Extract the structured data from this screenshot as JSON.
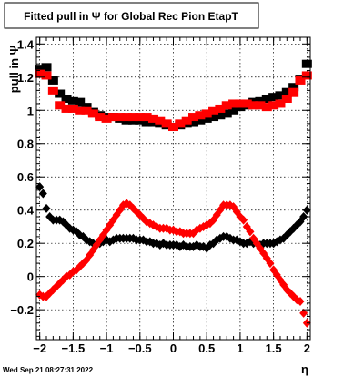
{
  "chart_data": {
    "type": "scatter",
    "title": "Fitted pull in  Ψ  for Global Rec Pion EtapT",
    "xlabel": "η",
    "ylabel": "pull in  Ψ",
    "xlim": [
      -2.05,
      2.05
    ],
    "ylim": [
      -0.38,
      1.44
    ],
    "x_ticks": [
      -2,
      -1.5,
      -1,
      -0.5,
      0,
      0.5,
      1,
      1.5,
      2
    ],
    "x_tick_labels": [
      "−2",
      "−1.5",
      "−1",
      "−0.5",
      "0",
      "0.5",
      "1",
      "1.5",
      "2"
    ],
    "y_ticks": [
      -0.2,
      0,
      0.2,
      0.4,
      0.6,
      0.8,
      1,
      1.2,
      1.4
    ],
    "y_tick_labels": [
      "−0.2",
      "0",
      "0.2",
      "0.4",
      "0.6",
      "0.8",
      "1",
      "1.2",
      "1.4"
    ],
    "grid": true,
    "series": [
      {
        "marker": "square",
        "color": "#000000",
        "points": [
          [
            -2.0,
            1.25
          ],
          [
            -1.9,
            1.26
          ],
          [
            -1.8,
            1.18
          ],
          [
            -1.7,
            1.1
          ],
          [
            -1.6,
            1.07
          ],
          [
            -1.5,
            1.06
          ],
          [
            -1.4,
            1.05
          ],
          [
            -1.3,
            1.02
          ],
          [
            -1.2,
            0.99
          ],
          [
            -1.1,
            0.97
          ],
          [
            -1.0,
            0.96
          ],
          [
            -0.9,
            0.96
          ],
          [
            -0.8,
            0.95
          ],
          [
            -0.7,
            0.94
          ],
          [
            -0.6,
            0.94
          ],
          [
            -0.5,
            0.94
          ],
          [
            -0.4,
            0.93
          ],
          [
            -0.3,
            0.93
          ],
          [
            -0.2,
            0.92
          ],
          [
            -0.1,
            0.91
          ],
          [
            0.0,
            0.9
          ],
          [
            0.1,
            0.91
          ],
          [
            0.2,
            0.92
          ],
          [
            0.3,
            0.93
          ],
          [
            0.4,
            0.94
          ],
          [
            0.5,
            0.95
          ],
          [
            0.6,
            0.96
          ],
          [
            0.7,
            0.97
          ],
          [
            0.8,
            0.98
          ],
          [
            0.9,
            1.0
          ],
          [
            1.0,
            1.02
          ],
          [
            1.1,
            1.03
          ],
          [
            1.2,
            1.05
          ],
          [
            1.3,
            1.06
          ],
          [
            1.4,
            1.07
          ],
          [
            1.5,
            1.08
          ],
          [
            1.6,
            1.09
          ],
          [
            1.7,
            1.11
          ],
          [
            1.8,
            1.14
          ],
          [
            1.9,
            1.19
          ],
          [
            2.0,
            1.28
          ]
        ]
      },
      {
        "marker": "square",
        "color": "#ff0000",
        "points": [
          [
            -2.0,
            1.22
          ],
          [
            -1.9,
            1.21
          ],
          [
            -1.8,
            1.12
          ],
          [
            -1.7,
            1.03
          ],
          [
            -1.6,
            1.01
          ],
          [
            -1.5,
            1.01
          ],
          [
            -1.4,
            1.0
          ],
          [
            -1.3,
            1.0
          ],
          [
            -1.2,
            0.98
          ],
          [
            -1.1,
            0.96
          ],
          [
            -1.0,
            0.95
          ],
          [
            -0.9,
            0.96
          ],
          [
            -0.8,
            0.96
          ],
          [
            -0.7,
            0.96
          ],
          [
            -0.6,
            0.96
          ],
          [
            -0.5,
            0.96
          ],
          [
            -0.4,
            0.96
          ],
          [
            -0.3,
            0.95
          ],
          [
            -0.2,
            0.94
          ],
          [
            -0.1,
            0.92
          ],
          [
            0.0,
            0.9
          ],
          [
            0.1,
            0.92
          ],
          [
            0.2,
            0.94
          ],
          [
            0.3,
            0.96
          ],
          [
            0.4,
            0.97
          ],
          [
            0.5,
            0.98
          ],
          [
            0.6,
            1.0
          ],
          [
            0.7,
            1.01
          ],
          [
            0.8,
            1.03
          ],
          [
            0.9,
            1.04
          ],
          [
            1.0,
            1.04
          ],
          [
            1.1,
            1.04
          ],
          [
            1.2,
            1.03
          ],
          [
            1.3,
            1.03
          ],
          [
            1.4,
            1.02
          ],
          [
            1.5,
            1.03
          ],
          [
            1.6,
            1.04
          ],
          [
            1.7,
            1.07
          ],
          [
            1.8,
            1.11
          ],
          [
            1.9,
            1.18
          ],
          [
            2.0,
            1.21
          ]
        ]
      },
      {
        "marker": "diamond",
        "color": "#000000",
        "points": [
          [
            -2.0,
            0.54
          ],
          [
            -1.95,
            0.5
          ],
          [
            -1.9,
            0.41
          ],
          [
            -1.85,
            0.36
          ],
          [
            -1.8,
            0.34
          ],
          [
            -1.75,
            0.34
          ],
          [
            -1.7,
            0.34
          ],
          [
            -1.65,
            0.33
          ],
          [
            -1.6,
            0.31
          ],
          [
            -1.55,
            0.29
          ],
          [
            -1.5,
            0.28
          ],
          [
            -1.45,
            0.27
          ],
          [
            -1.4,
            0.25
          ],
          [
            -1.35,
            0.24
          ],
          [
            -1.3,
            0.22
          ],
          [
            -1.25,
            0.21
          ],
          [
            -1.2,
            0.2
          ],
          [
            -1.15,
            0.19
          ],
          [
            -1.1,
            0.2
          ],
          [
            -1.05,
            0.21
          ],
          [
            -1.0,
            0.22
          ],
          [
            -0.95,
            0.21
          ],
          [
            -0.9,
            0.22
          ],
          [
            -0.85,
            0.23
          ],
          [
            -0.8,
            0.23
          ],
          [
            -0.75,
            0.23
          ],
          [
            -0.7,
            0.23
          ],
          [
            -0.65,
            0.23
          ],
          [
            -0.6,
            0.23
          ],
          [
            -0.55,
            0.22
          ],
          [
            -0.5,
            0.22
          ],
          [
            -0.45,
            0.22
          ],
          [
            -0.4,
            0.21
          ],
          [
            -0.35,
            0.21
          ],
          [
            -0.3,
            0.2
          ],
          [
            -0.25,
            0.2
          ],
          [
            -0.2,
            0.19
          ],
          [
            -0.15,
            0.2
          ],
          [
            -0.1,
            0.19
          ],
          [
            -0.05,
            0.19
          ],
          [
            0.0,
            0.19
          ],
          [
            0.05,
            0.19
          ],
          [
            0.1,
            0.18
          ],
          [
            0.15,
            0.19
          ],
          [
            0.2,
            0.18
          ],
          [
            0.25,
            0.18
          ],
          [
            0.3,
            0.18
          ],
          [
            0.35,
            0.19
          ],
          [
            0.4,
            0.18
          ],
          [
            0.45,
            0.18
          ],
          [
            0.5,
            0.17
          ],
          [
            0.55,
            0.19
          ],
          [
            0.6,
            0.2
          ],
          [
            0.65,
            0.22
          ],
          [
            0.7,
            0.23
          ],
          [
            0.75,
            0.24
          ],
          [
            0.8,
            0.24
          ],
          [
            0.85,
            0.23
          ],
          [
            0.9,
            0.22
          ],
          [
            0.95,
            0.22
          ],
          [
            1.0,
            0.21
          ],
          [
            1.05,
            0.2
          ],
          [
            1.1,
            0.2
          ],
          [
            1.15,
            0.21
          ],
          [
            1.2,
            0.2
          ],
          [
            1.25,
            0.2
          ],
          [
            1.3,
            0.19
          ],
          [
            1.35,
            0.2
          ],
          [
            1.4,
            0.2
          ],
          [
            1.45,
            0.2
          ],
          [
            1.5,
            0.2
          ],
          [
            1.55,
            0.21
          ],
          [
            1.6,
            0.22
          ],
          [
            1.65,
            0.23
          ],
          [
            1.7,
            0.25
          ],
          [
            1.75,
            0.27
          ],
          [
            1.8,
            0.29
          ],
          [
            1.85,
            0.31
          ],
          [
            1.9,
            0.33
          ],
          [
            1.95,
            0.36
          ],
          [
            2.0,
            0.4
          ]
        ]
      },
      {
        "marker": "diamond",
        "color": "#ff0000",
        "points": [
          [
            -2.0,
            -0.11
          ],
          [
            -1.95,
            -0.12
          ],
          [
            -1.9,
            -0.12
          ],
          [
            -1.85,
            -0.1
          ],
          [
            -1.8,
            -0.08
          ],
          [
            -1.75,
            -0.06
          ],
          [
            -1.7,
            -0.04
          ],
          [
            -1.65,
            -0.02
          ],
          [
            -1.6,
            0.0
          ],
          [
            -1.55,
            0.01
          ],
          [
            -1.5,
            0.03
          ],
          [
            -1.45,
            0.04
          ],
          [
            -1.4,
            0.06
          ],
          [
            -1.35,
            0.08
          ],
          [
            -1.3,
            0.1
          ],
          [
            -1.25,
            0.13
          ],
          [
            -1.2,
            0.16
          ],
          [
            -1.15,
            0.19
          ],
          [
            -1.1,
            0.22
          ],
          [
            -1.05,
            0.25
          ],
          [
            -1.0,
            0.28
          ],
          [
            -0.95,
            0.31
          ],
          [
            -0.9,
            0.34
          ],
          [
            -0.85,
            0.37
          ],
          [
            -0.8,
            0.4
          ],
          [
            -0.75,
            0.43
          ],
          [
            -0.7,
            0.44
          ],
          [
            -0.65,
            0.43
          ],
          [
            -0.6,
            0.41
          ],
          [
            -0.55,
            0.39
          ],
          [
            -0.5,
            0.37
          ],
          [
            -0.45,
            0.35
          ],
          [
            -0.4,
            0.33
          ],
          [
            -0.35,
            0.32
          ],
          [
            -0.3,
            0.31
          ],
          [
            -0.25,
            0.3
          ],
          [
            -0.2,
            0.29
          ],
          [
            -0.15,
            0.29
          ],
          [
            -0.1,
            0.29
          ],
          [
            -0.05,
            0.28
          ],
          [
            0.0,
            0.28
          ],
          [
            0.05,
            0.27
          ],
          [
            0.1,
            0.27
          ],
          [
            0.15,
            0.26
          ],
          [
            0.2,
            0.26
          ],
          [
            0.25,
            0.26
          ],
          [
            0.3,
            0.26
          ],
          [
            0.35,
            0.28
          ],
          [
            0.4,
            0.29
          ],
          [
            0.45,
            0.3
          ],
          [
            0.5,
            0.31
          ],
          [
            0.55,
            0.32
          ],
          [
            0.6,
            0.34
          ],
          [
            0.65,
            0.37
          ],
          [
            0.7,
            0.4
          ],
          [
            0.75,
            0.43
          ],
          [
            0.8,
            0.43
          ],
          [
            0.85,
            0.43
          ],
          [
            0.9,
            0.42
          ],
          [
            0.95,
            0.39
          ],
          [
            1.0,
            0.36
          ],
          [
            1.05,
            0.34
          ],
          [
            1.1,
            0.3
          ],
          [
            1.15,
            0.27
          ],
          [
            1.2,
            0.23
          ],
          [
            1.25,
            0.2
          ],
          [
            1.3,
            0.17
          ],
          [
            1.35,
            0.14
          ],
          [
            1.4,
            0.11
          ],
          [
            1.45,
            0.08
          ],
          [
            1.5,
            0.04
          ],
          [
            1.55,
            0.01
          ],
          [
            1.6,
            -0.02
          ],
          [
            1.65,
            -0.05
          ],
          [
            1.7,
            -0.08
          ],
          [
            1.75,
            -0.1
          ],
          [
            1.8,
            -0.12
          ],
          [
            1.85,
            -0.14
          ],
          [
            1.9,
            -0.15
          ],
          [
            1.95,
            -0.22
          ],
          [
            2.0,
            -0.28
          ]
        ]
      }
    ]
  },
  "footer": {
    "timestamp": "Wed Sep 21 08:27:31 2022"
  }
}
